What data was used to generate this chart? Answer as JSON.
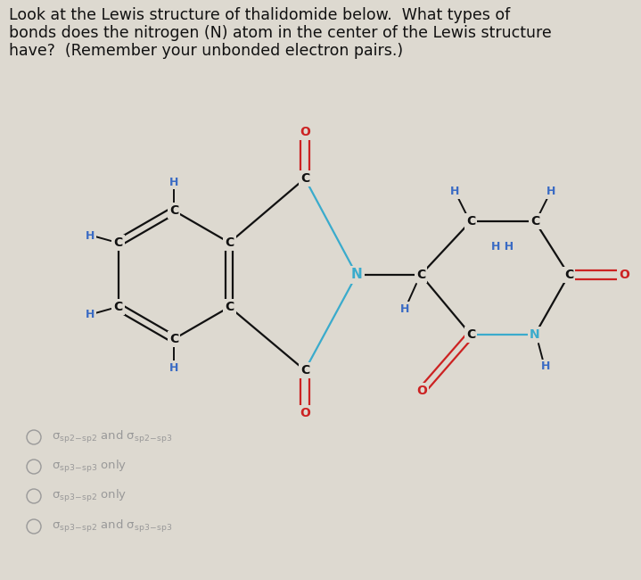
{
  "bg_color": "#ddd9d0",
  "title_text1": "Look at the Lewis structure of thalidomide below.  What types of",
  "title_text2": "bonds does the nitrogen (N) atom in the center of the Lewis structure",
  "title_text3": "have?  (Remember your unbonded electron pairs.)",
  "title_fontsize": 12.5,
  "title_color": "#111111",
  "atom_color_C": "#111111",
  "atom_color_H": "#3a6bc4",
  "atom_color_N_center": "#3aabcc",
  "atom_color_N_right": "#3aabcc",
  "atom_color_O": "#cc2222",
  "bond_color": "#111111",
  "bond_color_blue": "#3aabcc",
  "answer_color": "#999999",
  "answer_fontsize": 9.5
}
